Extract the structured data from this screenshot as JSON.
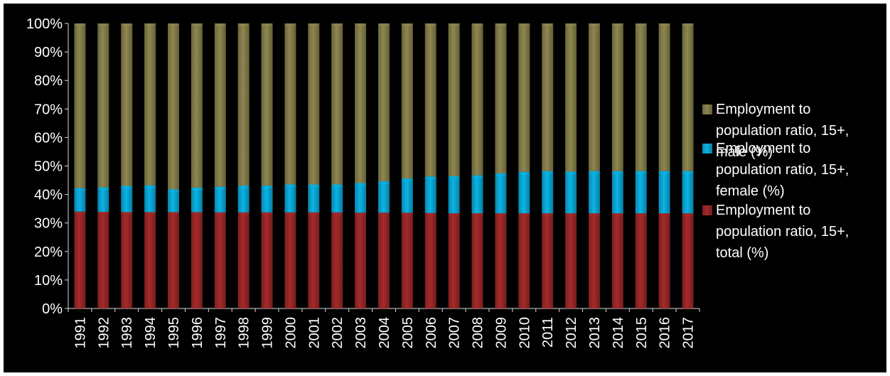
{
  "chart_data": {
    "type": "bar",
    "stacking": "percent",
    "categories": [
      "1991",
      "1992",
      "1993",
      "1994",
      "1995",
      "1996",
      "1997",
      "1998",
      "1999",
      "2000",
      "2001",
      "2002",
      "2003",
      "2004",
      "2005",
      "2006",
      "2007",
      "2008",
      "2009",
      "2010",
      "2011",
      "2012",
      "2013",
      "2014",
      "2015",
      "2016",
      "2017"
    ],
    "series": [
      {
        "name": "Employment to population ratio, 15+, total (%)",
        "color": "#a52a2a",
        "values": [
          34.0,
          33.9,
          33.8,
          33.8,
          33.8,
          33.8,
          33.7,
          33.7,
          33.7,
          33.7,
          33.7,
          33.7,
          33.6,
          33.6,
          33.6,
          33.5,
          33.4,
          33.4,
          33.4,
          33.4,
          33.4,
          33.4,
          33.4,
          33.4,
          33.4,
          33.4,
          33.4
        ]
      },
      {
        "name": "Employment to population ratio, 15+, female (%)",
        "color": "#0ab4e6",
        "values": [
          8.2,
          8.6,
          9.2,
          9.4,
          8.0,
          8.6,
          9.0,
          9.4,
          9.4,
          9.8,
          9.8,
          9.8,
          10.4,
          11.0,
          12.0,
          12.8,
          13.0,
          13.3,
          14.0,
          14.5,
          14.8,
          14.6,
          14.8,
          14.8,
          14.8,
          14.8,
          14.8
        ]
      },
      {
        "name": "Employment to population ratio, 15+, male (%)",
        "color": "#8e8750",
        "values": [
          57.8,
          57.5,
          57.0,
          56.8,
          58.2,
          57.6,
          57.3,
          56.9,
          56.9,
          56.5,
          56.5,
          56.5,
          56.0,
          55.4,
          54.4,
          53.7,
          53.6,
          53.3,
          52.6,
          52.1,
          51.8,
          52.0,
          51.8,
          51.8,
          51.8,
          51.8,
          51.8
        ]
      }
    ],
    "ylim": [
      0,
      100
    ],
    "y_ticks": [
      "0%",
      "10%",
      "20%",
      "30%",
      "40%",
      "50%",
      "60%",
      "70%",
      "80%",
      "90%",
      "100%"
    ],
    "grid": false,
    "legend_position": "right",
    "title": "",
    "xlabel": "",
    "ylabel": ""
  }
}
